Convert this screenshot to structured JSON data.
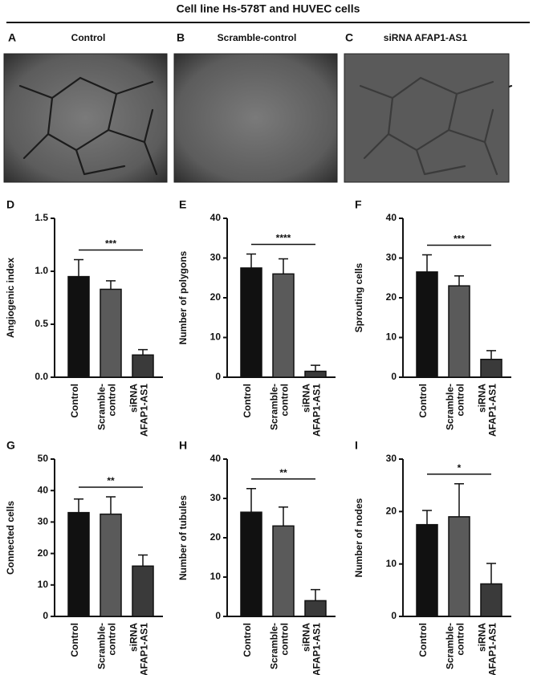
{
  "figure": {
    "title": "Cell line Hs-578T and HUVEC cells",
    "panels": [
      {
        "letter": "A",
        "label": "Control"
      },
      {
        "letter": "B",
        "label": "Scramble-control"
      },
      {
        "letter": "C",
        "label": "siRNA AFAP1-AS1"
      }
    ]
  },
  "chart_data": [
    {
      "type": "bar",
      "panel": "D",
      "ylabel": "Angiogenic index",
      "categories": [
        [
          "Control"
        ],
        [
          "Scramble-",
          "control"
        ],
        [
          "siRNA",
          "AFAP1-AS1"
        ]
      ],
      "values": [
        0.95,
        0.83,
        0.21
      ],
      "errors": [
        0.16,
        0.08,
        0.05
      ],
      "colors": [
        "#111111",
        "#5a5a5a",
        "#3a3a3a"
      ],
      "significance": "***",
      "ylim": [
        0,
        1.5
      ],
      "yticks": [
        {
          "value": 0,
          "label": "0.0"
        },
        0.5,
        {
          "value": 1,
          "label": "1.0"
        },
        1.5
      ]
    },
    {
      "type": "bar",
      "panel": "E",
      "ylabel": "Number of polygons",
      "categories": [
        [
          "Control"
        ],
        [
          "Scramble-",
          "control"
        ],
        [
          "siRNA",
          "AFAP1-AS1"
        ]
      ],
      "values": [
        27.5,
        26,
        1.5
      ],
      "errors": [
        3.5,
        3.8,
        1.5
      ],
      "colors": [
        "#111111",
        "#5a5a5a",
        "#3a3a3a"
      ],
      "significance": "****",
      "ylim": [
        0,
        40
      ],
      "yticks": [
        0,
        10,
        20,
        30,
        40
      ]
    },
    {
      "type": "bar",
      "panel": "F",
      "ylabel": "Sprouting cells",
      "categories": [
        [
          "Control"
        ],
        [
          "Scramble-",
          "control"
        ],
        [
          "siRNA",
          "AFAP1-AS1"
        ]
      ],
      "values": [
        26.5,
        23,
        4.5
      ],
      "errors": [
        4.3,
        2.5,
        2.2
      ],
      "colors": [
        "#111111",
        "#5a5a5a",
        "#3a3a3a"
      ],
      "significance": "***",
      "ylim": [
        0,
        40
      ],
      "yticks": [
        0,
        10,
        20,
        30,
        40
      ]
    },
    {
      "type": "bar",
      "panel": "G",
      "ylabel": "Connected cells",
      "categories": [
        [
          "Control"
        ],
        [
          "Scramble-",
          "control"
        ],
        [
          "siRNA",
          "AFAP1-AS1"
        ]
      ],
      "values": [
        33,
        32.5,
        16
      ],
      "errors": [
        4.3,
        5.5,
        3.5
      ],
      "colors": [
        "#111111",
        "#5a5a5a",
        "#3a3a3a"
      ],
      "significance": "**",
      "ylim": [
        0,
        50
      ],
      "yticks": [
        0,
        10,
        20,
        30,
        40,
        50
      ]
    },
    {
      "type": "bar",
      "panel": "H",
      "ylabel": "Number of tubules",
      "categories": [
        [
          "Control"
        ],
        [
          "Scramble-",
          "control"
        ],
        [
          "siRNA",
          "AFAP1-AS1"
        ]
      ],
      "values": [
        26.5,
        23,
        4
      ],
      "errors": [
        6,
        4.8,
        2.8
      ],
      "colors": [
        "#111111",
        "#5a5a5a",
        "#3a3a3a"
      ],
      "significance": "**",
      "ylim": [
        0,
        40
      ],
      "yticks": [
        0,
        10,
        20,
        30,
        40
      ]
    },
    {
      "type": "bar",
      "panel": "I",
      "ylabel": "Number of nodes",
      "categories": [
        [
          "Control"
        ],
        [
          "Scramble-",
          "control"
        ],
        [
          "siRNA",
          "AFAP1-AS1"
        ]
      ],
      "values": [
        17.5,
        19,
        6.2
      ],
      "errors": [
        2.7,
        6.3,
        3.9
      ],
      "colors": [
        "#111111",
        "#5a5a5a",
        "#3a3a3a"
      ],
      "significance": "*",
      "ylim": [
        0,
        30
      ],
      "yticks": [
        0,
        10,
        20,
        30
      ]
    }
  ]
}
